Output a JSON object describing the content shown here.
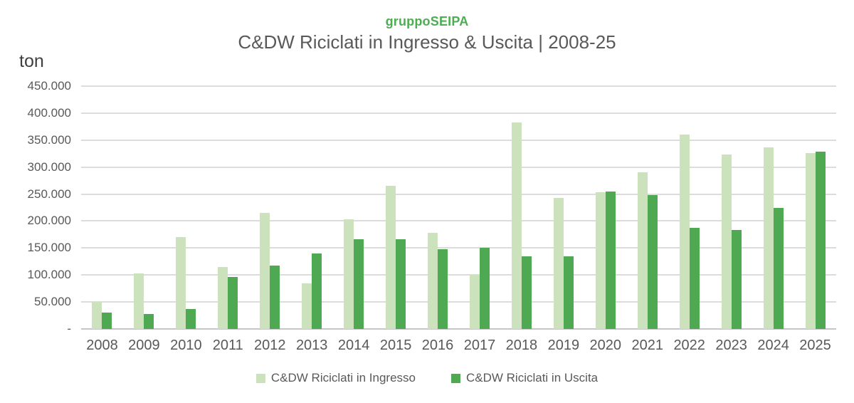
{
  "header": {
    "brand": "gruppoSEIPA",
    "title": "C&DW Riciclati in Ingresso & Uscita | 2008-25"
  },
  "chart_data": {
    "type": "bar",
    "title": "C&DW Riciclati in Ingresso & Uscita | 2008-25",
    "unit": "ton",
    "categories": [
      "2008",
      "2009",
      "2010",
      "2011",
      "2012",
      "2013",
      "2014",
      "2015",
      "2016",
      "2017",
      "2018",
      "2019",
      "2020",
      "2021",
      "2022",
      "2023",
      "2024",
      "2025"
    ],
    "series": [
      {
        "name": "C&DW Riciclati in Ingresso",
        "color": "#cce2bd",
        "values": [
          50000,
          103000,
          170000,
          115000,
          215000,
          85000,
          203000,
          265000,
          178000,
          100000,
          383000,
          243000,
          253000,
          290000,
          360000,
          323000,
          336000,
          326000
        ]
      },
      {
        "name": "C&DW Riciclati in Uscita",
        "color": "#4fa852",
        "values": [
          30000,
          28000,
          37000,
          96000,
          117000,
          140000,
          166000,
          166000,
          148000,
          150000,
          135000,
          135000,
          255000,
          248000,
          187000,
          184000,
          225000,
          328000
        ]
      }
    ],
    "ylim": [
      0,
      450000
    ],
    "ytick_step": 50000,
    "ytick_labels": [
      "-",
      "50.000",
      "100.000",
      "150.000",
      "200.000",
      "250.000",
      "300.000",
      "350.000",
      "400.000",
      "450.000"
    ],
    "grid": true,
    "legend_position": "bottom"
  }
}
